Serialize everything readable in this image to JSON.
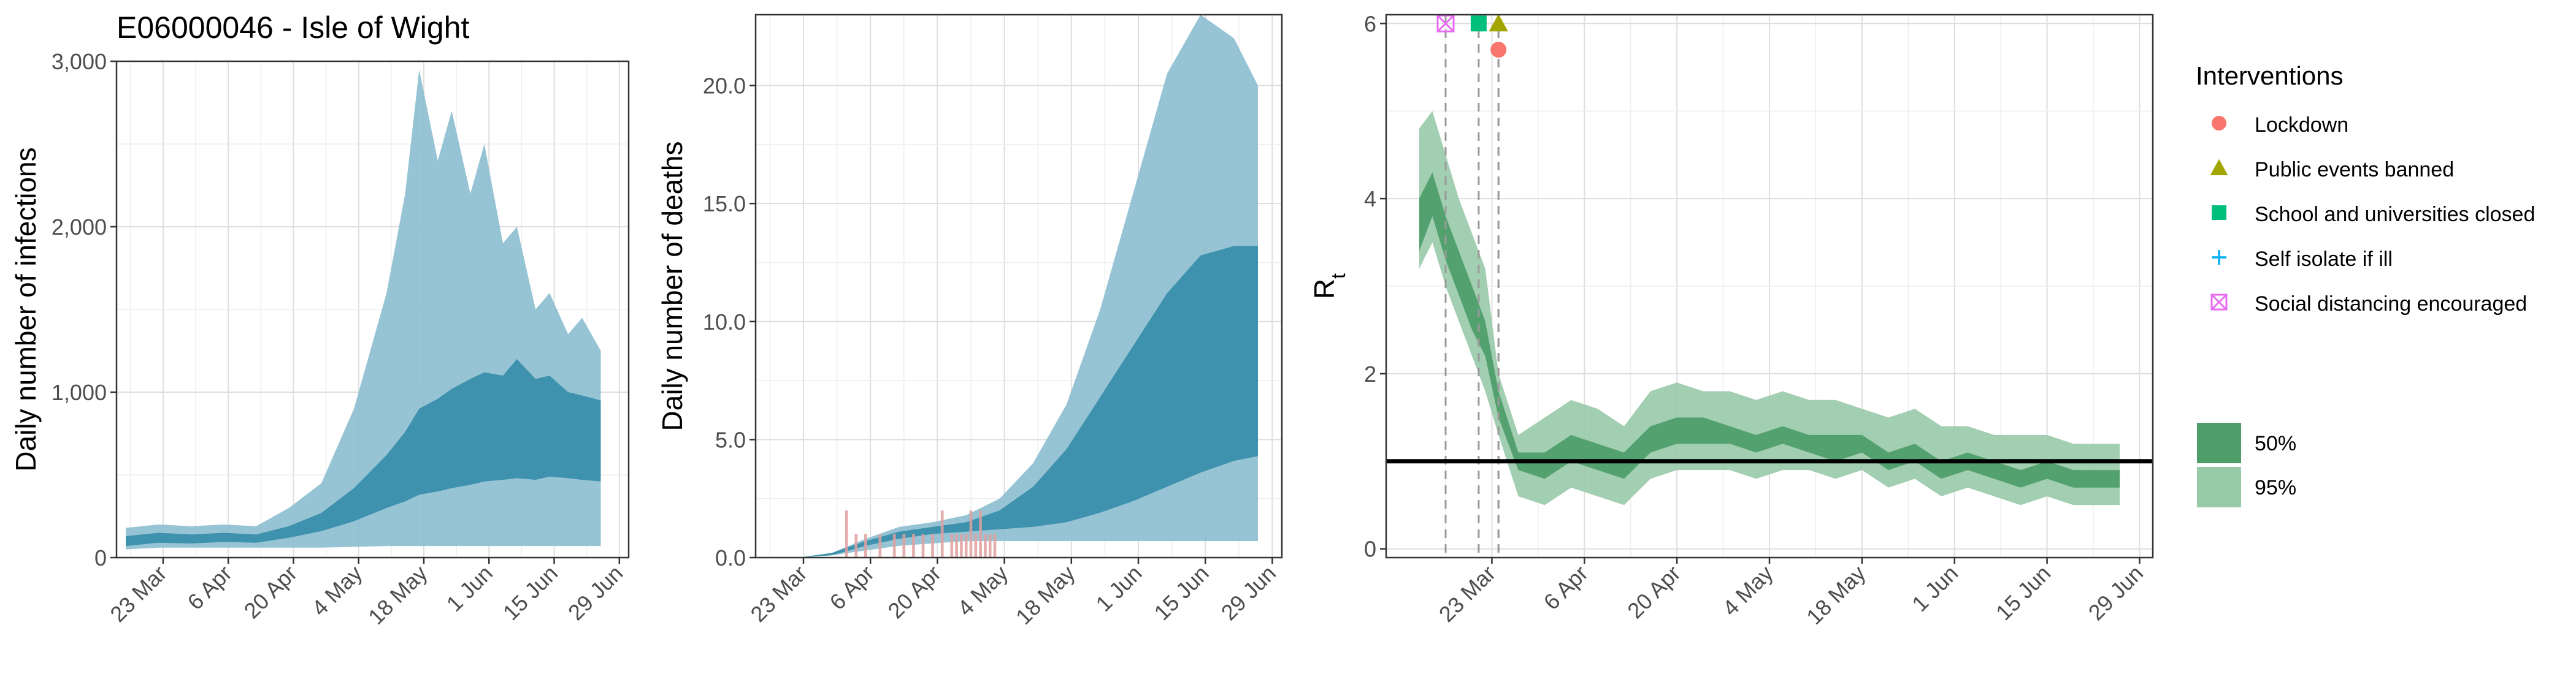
{
  "figure": {
    "title": "E06000046 - Isle of Wight"
  },
  "colors": {
    "panel_bg": "#ffffff",
    "grid_major": "#dedede",
    "grid_minor": "#eeeeee",
    "axis": "#333333",
    "text": "#000000",
    "tick_text": "#4d4d4d",
    "blue_95": "#8cbed0",
    "blue_50": "#3a8fab",
    "green_95": "#98c9a8",
    "green_50": "#4f9e6a",
    "death_bar": "#e0a0a0",
    "ref_line": "#000000",
    "lockdown": "#f8766d",
    "public_events": "#a3a500",
    "schools": "#00bf7d",
    "self_isolate": "#00b0f6",
    "social_distancing": "#e76bf3"
  },
  "x_axis": {
    "ticks": [
      "2020-03-23",
      "2020-04-06",
      "2020-04-20",
      "2020-05-04",
      "2020-05-18",
      "2020-06-01",
      "2020-06-15",
      "2020-06-29"
    ],
    "tick_labels": [
      "23 Mar",
      "6 Apr",
      "20 Apr",
      "4 May",
      "18 May",
      "1 Jun",
      "15 Jun",
      "29 Jun"
    ]
  },
  "chart_data": [
    {
      "type": "area",
      "panel": "infections",
      "ylabel": "Daily number of infections",
      "ylim": [
        0,
        3000
      ],
      "yticks": [
        0,
        1000,
        2000,
        3000
      ],
      "ytick_labels": [
        "0",
        "1,000",
        "2,000",
        "3,000"
      ],
      "xlim": [
        "2020-03-13",
        "2020-07-01"
      ],
      "grid": true,
      "x": [
        "2020-03-15",
        "2020-03-22",
        "2020-03-29",
        "2020-04-05",
        "2020-04-12",
        "2020-04-19",
        "2020-04-26",
        "2020-05-03",
        "2020-05-10",
        "2020-05-14",
        "2020-05-17",
        "2020-05-21",
        "2020-05-24",
        "2020-05-28",
        "2020-05-31",
        "2020-06-04",
        "2020-06-07",
        "2020-06-11",
        "2020-06-14",
        "2020-06-18",
        "2020-06-21",
        "2020-06-25"
      ],
      "series": [
        {
          "interval": "95%",
          "lower": [
            50,
            60,
            60,
            60,
            60,
            60,
            60,
            65,
            70,
            70,
            70,
            70,
            70,
            70,
            70,
            70,
            70,
            70,
            70,
            70,
            70,
            70
          ],
          "upper": [
            180,
            200,
            190,
            200,
            190,
            300,
            450,
            900,
            1600,
            2200,
            2950,
            2400,
            2700,
            2200,
            2500,
            1900,
            2000,
            1500,
            1600,
            1350,
            1450,
            1250
          ]
        },
        {
          "interval": "50%",
          "lower": [
            70,
            90,
            85,
            95,
            90,
            120,
            160,
            220,
            300,
            340,
            380,
            400,
            420,
            440,
            460,
            470,
            480,
            470,
            490,
            480,
            470,
            460
          ],
          "upper": [
            130,
            150,
            140,
            150,
            140,
            190,
            270,
            420,
            620,
            760,
            900,
            960,
            1020,
            1080,
            1120,
            1100,
            1200,
            1080,
            1100,
            1000,
            980,
            950
          ]
        }
      ]
    },
    {
      "type": "area",
      "panel": "deaths",
      "ylabel": "Daily number of deaths",
      "ylim": [
        0,
        23
      ],
      "yticks": [
        0,
        5,
        10,
        15,
        20
      ],
      "ytick_labels": [
        "0.0",
        "5.0",
        "10.0",
        "15.0",
        "20.0"
      ],
      "xlim": [
        "2020-03-13",
        "2020-07-01"
      ],
      "grid": true,
      "x": [
        "2020-03-15",
        "2020-03-22",
        "2020-03-29",
        "2020-04-05",
        "2020-04-12",
        "2020-04-19",
        "2020-04-26",
        "2020-05-03",
        "2020-05-10",
        "2020-05-17",
        "2020-05-24",
        "2020-05-31",
        "2020-06-07",
        "2020-06-14",
        "2020-06-21",
        "2020-06-26"
      ],
      "series": [
        {
          "interval": "95%",
          "lower": [
            0,
            0,
            0.1,
            0.3,
            0.5,
            0.6,
            0.7,
            0.7,
            0.7,
            0.7,
            0.7,
            0.7,
            0.7,
            0.7,
            0.7,
            0.7
          ],
          "upper": [
            0,
            0,
            0.2,
            0.8,
            1.3,
            1.5,
            1.8,
            2.5,
            4.0,
            6.5,
            10.5,
            15.5,
            20.5,
            23.0,
            22.0,
            20.0
          ]
        },
        {
          "interval": "50%",
          "lower": [
            0,
            0,
            0.1,
            0.5,
            0.8,
            1.0,
            1.1,
            1.2,
            1.3,
            1.5,
            1.9,
            2.4,
            3.0,
            3.6,
            4.1,
            4.3
          ],
          "upper": [
            0,
            0,
            0.2,
            0.7,
            1.1,
            1.3,
            1.5,
            2.0,
            3.0,
            4.6,
            6.8,
            9.0,
            11.2,
            12.8,
            13.2,
            13.2
          ]
        }
      ],
      "observed_deaths": {
        "x": [
          "2020-04-01",
          "2020-04-03",
          "2020-04-05",
          "2020-04-08",
          "2020-04-11",
          "2020-04-13",
          "2020-04-15",
          "2020-04-17",
          "2020-04-19",
          "2020-04-21",
          "2020-04-23",
          "2020-04-24",
          "2020-04-25",
          "2020-04-26",
          "2020-04-27",
          "2020-04-28",
          "2020-04-29",
          "2020-04-30",
          "2020-05-01",
          "2020-05-02"
        ],
        "values": [
          2,
          1,
          1,
          1,
          1,
          1,
          1,
          1,
          1,
          2,
          1,
          1,
          1,
          1,
          2,
          1,
          2,
          1,
          1,
          1
        ]
      }
    },
    {
      "type": "area",
      "panel": "rt",
      "ylabel": "R",
      "ylabel_subscript": "t",
      "ylim": [
        -0.1,
        6.1
      ],
      "yticks": [
        0,
        2,
        4,
        6
      ],
      "ytick_labels": [
        "0",
        "2",
        "4",
        "6"
      ],
      "xlim": [
        "2020-03-07",
        "2020-07-01"
      ],
      "grid": true,
      "reference_line": 1,
      "x": [
        "2020-03-12",
        "2020-03-14",
        "2020-03-16",
        "2020-03-18",
        "2020-03-20",
        "2020-03-22",
        "2020-03-24",
        "2020-03-27",
        "2020-03-31",
        "2020-04-04",
        "2020-04-08",
        "2020-04-12",
        "2020-04-16",
        "2020-04-20",
        "2020-04-24",
        "2020-04-28",
        "2020-05-02",
        "2020-05-06",
        "2020-05-10",
        "2020-05-14",
        "2020-05-18",
        "2020-05-22",
        "2020-05-26",
        "2020-05-30",
        "2020-06-03",
        "2020-06-07",
        "2020-06-11",
        "2020-06-15",
        "2020-06-19",
        "2020-06-23",
        "2020-06-26"
      ],
      "series": [
        {
          "interval": "95%",
          "lower": [
            3.2,
            3.5,
            3.0,
            2.6,
            2.2,
            1.8,
            1.3,
            0.6,
            0.5,
            0.7,
            0.6,
            0.5,
            0.8,
            0.9,
            0.9,
            0.9,
            0.8,
            0.9,
            0.9,
            0.8,
            0.9,
            0.7,
            0.8,
            0.6,
            0.7,
            0.6,
            0.5,
            0.6,
            0.5,
            0.5,
            0.5
          ],
          "upper": [
            4.8,
            5.0,
            4.5,
            4.0,
            3.6,
            3.2,
            2.0,
            1.3,
            1.5,
            1.7,
            1.6,
            1.4,
            1.8,
            1.9,
            1.8,
            1.8,
            1.7,
            1.8,
            1.7,
            1.7,
            1.6,
            1.5,
            1.6,
            1.4,
            1.4,
            1.3,
            1.3,
            1.3,
            1.2,
            1.2,
            1.2
          ]
        },
        {
          "interval": "50%",
          "lower": [
            3.4,
            3.8,
            3.3,
            2.9,
            2.5,
            2.2,
            1.5,
            0.9,
            0.8,
            1.0,
            0.9,
            0.8,
            1.1,
            1.2,
            1.2,
            1.2,
            1.1,
            1.2,
            1.1,
            1.0,
            1.1,
            0.9,
            1.0,
            0.8,
            0.9,
            0.8,
            0.7,
            0.8,
            0.7,
            0.7,
            0.7
          ],
          "upper": [
            4.0,
            4.3,
            3.8,
            3.4,
            3.0,
            2.6,
            1.8,
            1.1,
            1.1,
            1.3,
            1.2,
            1.1,
            1.4,
            1.5,
            1.5,
            1.4,
            1.3,
            1.4,
            1.3,
            1.3,
            1.3,
            1.1,
            1.2,
            1.0,
            1.1,
            1.0,
            0.9,
            1.0,
            0.9,
            0.9,
            0.9
          ]
        }
      ],
      "interventions": [
        {
          "name": "Social distancing encouraged",
          "x": "2020-03-16",
          "y": 6.0,
          "symbol": "square-cross"
        },
        {
          "name": "School and universities closed",
          "x": "2020-03-21",
          "y": 6.0,
          "symbol": "square"
        },
        {
          "name": "Public events banned",
          "x": "2020-03-24",
          "y": 6.0,
          "symbol": "triangle"
        },
        {
          "name": "Lockdown",
          "x": "2020-03-24",
          "y": 5.7,
          "symbol": "circle"
        }
      ]
    }
  ],
  "legend": {
    "placement": "right",
    "interventions_title": "Interventions",
    "interventions": [
      {
        "label": "Lockdown",
        "symbol": "circle"
      },
      {
        "label": "Public events banned",
        "symbol": "triangle"
      },
      {
        "label": "School and universities closed",
        "symbol": "square"
      },
      {
        "label": "Self isolate if ill",
        "symbol": "plus"
      },
      {
        "label": "Social distancing encouraged",
        "symbol": "square-cross"
      }
    ],
    "intervals": [
      {
        "label": "50%"
      },
      {
        "label": "95%"
      }
    ]
  }
}
